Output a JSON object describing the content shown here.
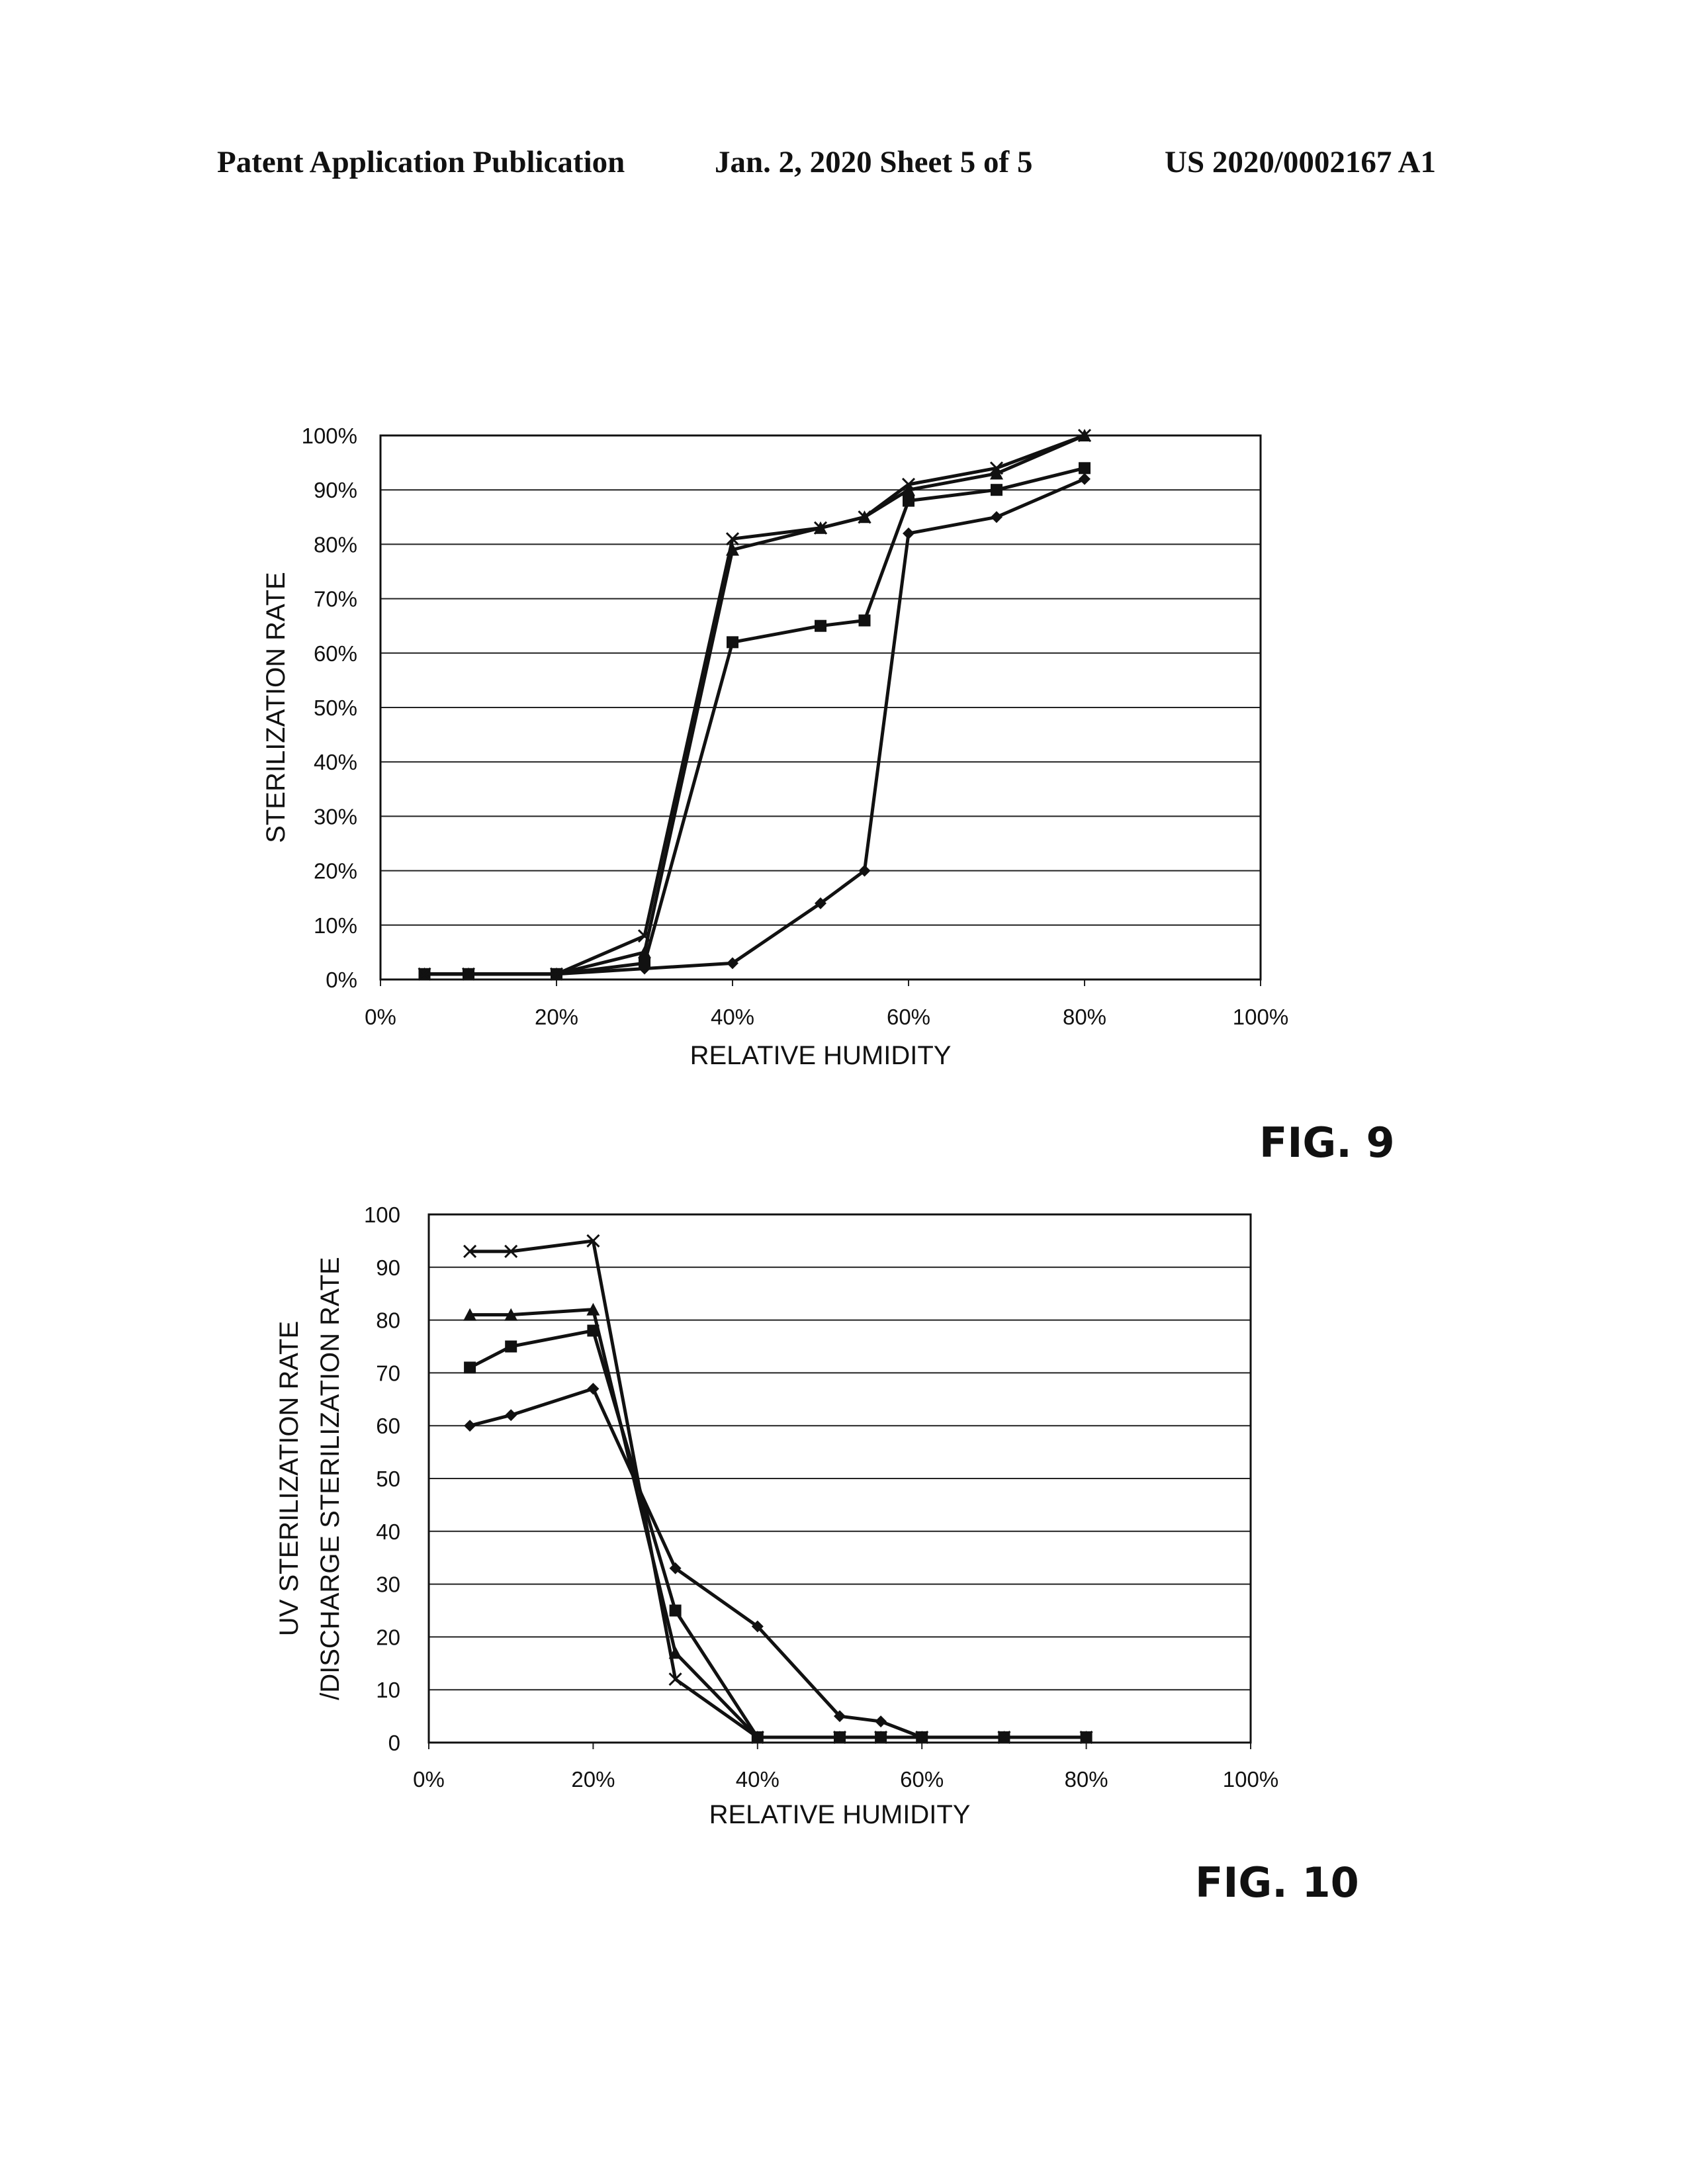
{
  "header": {
    "publication": "Patent Application Publication",
    "date_sheet": "Jan. 2, 2020   Sheet 5 of 5",
    "number": "US 2020/0002167 A1"
  },
  "chart_data": [
    {
      "type": "line",
      "figure_label": "FIG. 9",
      "xlabel": "RELATIVE HUMIDITY",
      "ylabel": "STERILIZATION RATE",
      "xlim": [
        0,
        100
      ],
      "ylim": [
        0,
        100
      ],
      "x_ticks": [
        0,
        20,
        40,
        60,
        80,
        100
      ],
      "x_tick_labels": [
        "0%",
        "20%",
        "40%",
        "60%",
        "80%",
        "100%"
      ],
      "y_ticks": [
        0,
        10,
        20,
        30,
        40,
        50,
        60,
        70,
        80,
        90,
        100
      ],
      "y_tick_labels": [
        "0%",
        "10%",
        "20%",
        "30%",
        "40%",
        "50%",
        "60%",
        "70%",
        "80%",
        "90%",
        "100%"
      ],
      "grid": "horizontal",
      "series": [
        {
          "marker": "diamond",
          "points": [
            [
              5,
              1
            ],
            [
              10,
              1
            ],
            [
              20,
              1
            ],
            [
              30,
              2
            ],
            [
              40,
              3
            ],
            [
              50,
              14
            ],
            [
              55,
              20
            ],
            [
              60,
              82
            ],
            [
              70,
              85
            ],
            [
              80,
              92
            ]
          ]
        },
        {
          "marker": "square",
          "points": [
            [
              5,
              1
            ],
            [
              10,
              1
            ],
            [
              20,
              1
            ],
            [
              30,
              3
            ],
            [
              40,
              62
            ],
            [
              50,
              65
            ],
            [
              55,
              66
            ],
            [
              60,
              88
            ],
            [
              70,
              90
            ],
            [
              80,
              94
            ]
          ]
        },
        {
          "marker": "triangle",
          "points": [
            [
              5,
              1
            ],
            [
              10,
              1
            ],
            [
              20,
              1
            ],
            [
              30,
              5
            ],
            [
              40,
              79
            ],
            [
              50,
              83
            ],
            [
              55,
              85
            ],
            [
              60,
              90
            ],
            [
              70,
              93
            ],
            [
              80,
              100
            ]
          ]
        },
        {
          "marker": "x",
          "points": [
            [
              5,
              1
            ],
            [
              10,
              1
            ],
            [
              20,
              1
            ],
            [
              30,
              8
            ],
            [
              40,
              81
            ],
            [
              50,
              83
            ],
            [
              55,
              85
            ],
            [
              60,
              91
            ],
            [
              70,
              94
            ],
            [
              80,
              100
            ]
          ]
        }
      ]
    },
    {
      "type": "line",
      "figure_label": "FIG. 10",
      "xlabel": "RELATIVE HUMIDITY",
      "ylabel_lines": [
        "UV STERILIZATION RATE",
        "/DISCHARGE STERILIZATION RATE"
      ],
      "xlim": [
        0,
        100
      ],
      "ylim": [
        0,
        100
      ],
      "x_ticks": [
        0,
        20,
        40,
        60,
        80,
        100
      ],
      "x_tick_labels": [
        "0%",
        "20%",
        "40%",
        "60%",
        "80%",
        "100%"
      ],
      "y_ticks": [
        0,
        10,
        20,
        30,
        40,
        50,
        60,
        70,
        80,
        90,
        100
      ],
      "y_tick_labels": [
        "0",
        "10",
        "20",
        "30",
        "40",
        "50",
        "60",
        "70",
        "80",
        "90",
        "100"
      ],
      "grid": "horizontal",
      "series": [
        {
          "marker": "diamond",
          "points": [
            [
              5,
              60
            ],
            [
              10,
              62
            ],
            [
              20,
              67
            ],
            [
              30,
              33
            ],
            [
              40,
              22
            ],
            [
              50,
              5
            ],
            [
              55,
              4
            ],
            [
              60,
              1
            ],
            [
              70,
              1
            ],
            [
              80,
              1
            ]
          ]
        },
        {
          "marker": "square",
          "points": [
            [
              5,
              71
            ],
            [
              10,
              75
            ],
            [
              20,
              78
            ],
            [
              30,
              25
            ],
            [
              40,
              1
            ],
            [
              50,
              1
            ],
            [
              55,
              1
            ],
            [
              60,
              1
            ],
            [
              70,
              1
            ],
            [
              80,
              1
            ]
          ]
        },
        {
          "marker": "triangle",
          "points": [
            [
              5,
              81
            ],
            [
              10,
              81
            ],
            [
              20,
              82
            ],
            [
              30,
              17
            ],
            [
              40,
              1
            ],
            [
              50,
              1
            ],
            [
              55,
              1
            ],
            [
              60,
              1
            ],
            [
              70,
              1
            ],
            [
              80,
              1
            ]
          ]
        },
        {
          "marker": "x",
          "points": [
            [
              5,
              93
            ],
            [
              10,
              93
            ],
            [
              20,
              95
            ],
            [
              30,
              12
            ],
            [
              40,
              1
            ],
            [
              50,
              1
            ],
            [
              55,
              1
            ],
            [
              60,
              1
            ],
            [
              70,
              1
            ],
            [
              80,
              1
            ]
          ]
        }
      ]
    }
  ]
}
